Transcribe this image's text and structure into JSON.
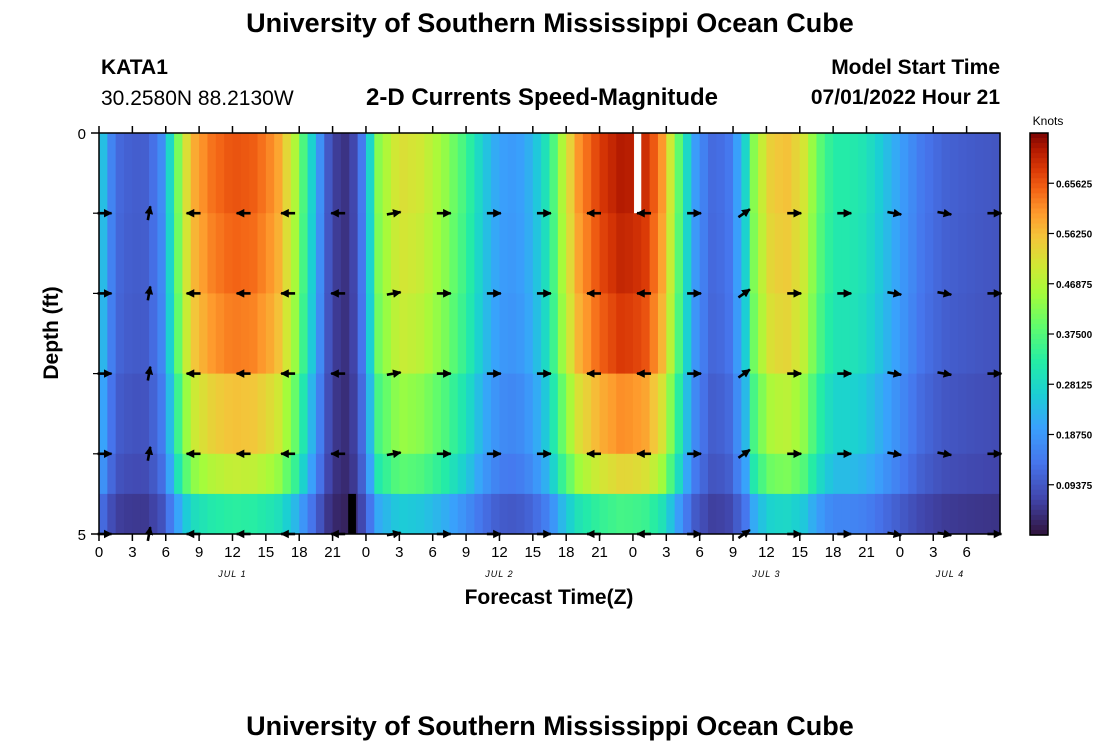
{
  "page": {
    "title": "University of Southern Mississippi Ocean Cube",
    "footer_title": "University of Southern Mississippi Ocean Cube",
    "station": "KATA1",
    "coords": "30.2580N  88.2130W",
    "subtitle": "2-D Currents Speed-Magnitude",
    "model_label": "Model Start Time",
    "model_time": "07/01/2022 Hour 21"
  },
  "chart_data": {
    "type": "heatmap",
    "title": "2-D Currents Speed-Magnitude",
    "xlabel": "Forecast Time(Z)",
    "ylabel": "Depth (ft)",
    "colorbar_label": "Knots",
    "colorbar_ticks": [
      "0.65625",
      "0.56250",
      "0.46875",
      "0.37500",
      "0.28125",
      "0.18750",
      "0.09375"
    ],
    "colorbar_tick_values": [
      0.65625,
      0.5625,
      0.46875,
      0.375,
      0.28125,
      0.1875,
      0.09375
    ],
    "crange": [
      0,
      0.75
    ],
    "x_range": [
      0,
      81
    ],
    "y_ticks": [
      "0",
      "5"
    ],
    "y_range": [
      0,
      5
    ],
    "x_ticks": [
      {
        "h": 0,
        "label": "0"
      },
      {
        "h": 3,
        "label": "3"
      },
      {
        "h": 6,
        "label": "6"
      },
      {
        "h": 9,
        "label": "9"
      },
      {
        "h": 12,
        "label": "12"
      },
      {
        "h": 15,
        "label": "15"
      },
      {
        "h": 18,
        "label": "18"
      },
      {
        "h": 21,
        "label": "21"
      },
      {
        "h": 24,
        "label": "0"
      },
      {
        "h": 27,
        "label": "3"
      },
      {
        "h": 30,
        "label": "6"
      },
      {
        "h": 33,
        "label": "9"
      },
      {
        "h": 36,
        "label": "12"
      },
      {
        "h": 39,
        "label": "15"
      },
      {
        "h": 42,
        "label": "18"
      },
      {
        "h": 45,
        "label": "21"
      },
      {
        "h": 48,
        "label": "0"
      },
      {
        "h": 51,
        "label": "3"
      },
      {
        "h": 54,
        "label": "6"
      },
      {
        "h": 57,
        "label": "9"
      },
      {
        "h": 60,
        "label": "12"
      },
      {
        "h": 63,
        "label": "15"
      },
      {
        "h": 66,
        "label": "18"
      },
      {
        "h": 69,
        "label": "21"
      },
      {
        "h": 72,
        "label": "0"
      },
      {
        "h": 75,
        "label": "3"
      },
      {
        "h": 78,
        "label": "6"
      }
    ],
    "date_labels": [
      {
        "h": 12,
        "label": "JUL 1"
      },
      {
        "h": 36,
        "label": "JUL 2"
      },
      {
        "h": 60,
        "label": "JUL 3"
      },
      {
        "h": 76.5,
        "label": "JUL 4"
      }
    ],
    "depth_rows": 5,
    "speed_profile": [
      [
        0,
        0.3
      ],
      [
        0.5,
        0.22
      ],
      [
        1.2,
        0.15
      ],
      [
        2,
        0.11
      ],
      [
        4,
        0.1
      ],
      [
        5.5,
        0.15
      ],
      [
        6.5,
        0.3
      ],
      [
        7.5,
        0.48
      ],
      [
        8.5,
        0.58
      ],
      [
        10,
        0.63
      ],
      [
        12,
        0.66
      ],
      [
        14,
        0.65
      ],
      [
        16,
        0.6
      ],
      [
        17.5,
        0.48
      ],
      [
        18.5,
        0.35
      ],
      [
        19.5,
        0.22
      ],
      [
        20.5,
        0.1
      ],
      [
        21.5,
        0.05
      ],
      [
        22.5,
        0.04
      ],
      [
        23.5,
        0.12
      ],
      [
        24.5,
        0.3
      ],
      [
        25,
        0.42
      ],
      [
        27,
        0.52
      ],
      [
        29,
        0.5
      ],
      [
        31,
        0.44
      ],
      [
        33,
        0.35
      ],
      [
        34.5,
        0.26
      ],
      [
        36,
        0.2
      ],
      [
        37.5,
        0.19
      ],
      [
        39,
        0.23
      ],
      [
        40.5,
        0.32
      ],
      [
        41.5,
        0.45
      ],
      [
        43,
        0.6
      ],
      [
        45,
        0.68
      ],
      [
        47,
        0.72
      ],
      [
        49,
        0.7
      ],
      [
        50.5,
        0.62
      ],
      [
        51.5,
        0.48
      ],
      [
        52.5,
        0.33
      ],
      [
        53.5,
        0.2
      ],
      [
        55,
        0.12
      ],
      [
        56.5,
        0.13
      ],
      [
        58,
        0.25
      ],
      [
        59,
        0.45
      ],
      [
        60.5,
        0.55
      ],
      [
        62,
        0.56
      ],
      [
        63.5,
        0.5
      ],
      [
        64.5,
        0.4
      ],
      [
        66,
        0.32
      ],
      [
        67.5,
        0.32
      ],
      [
        69,
        0.3
      ],
      [
        70.5,
        0.25
      ],
      [
        72,
        0.2
      ],
      [
        74,
        0.14
      ],
      [
        76,
        0.11
      ],
      [
        78,
        0.1
      ],
      [
        81,
        0.09
      ]
    ],
    "depth_factor": [
      1.0,
      0.98,
      0.95,
      0.85,
      0.74
    ],
    "bottom_factor": 0.5,
    "arrow_rows": [
      1,
      2,
      3,
      4,
      5
    ],
    "arrow_columns": [
      {
        "h": 0.5,
        "dir": 0
      },
      {
        "h": 4.5,
        "dir": 80
      },
      {
        "h": 8.5,
        "dir": 180
      },
      {
        "h": 13,
        "dir": 180
      },
      {
        "h": 17,
        "dir": 180
      },
      {
        "h": 21.5,
        "dir": 180
      },
      {
        "h": 26.5,
        "dir": 10
      },
      {
        "h": 31,
        "dir": 0
      },
      {
        "h": 35.5,
        "dir": 0
      },
      {
        "h": 40,
        "dir": 0
      },
      {
        "h": 44.5,
        "dir": 180
      },
      {
        "h": 49,
        "dir": 180
      },
      {
        "h": 53.5,
        "dir": 0
      },
      {
        "h": 58,
        "dir": 35
      },
      {
        "h": 62.5,
        "dir": 0
      },
      {
        "h": 67,
        "dir": 0
      },
      {
        "h": 71.5,
        "dir": 350
      },
      {
        "h": 76,
        "dir": 350
      },
      {
        "h": 80.5,
        "dir": 0
      }
    ]
  }
}
